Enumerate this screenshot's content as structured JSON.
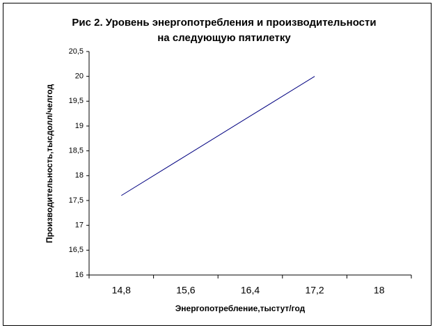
{
  "chart_data": {
    "type": "line",
    "title": [
      "Рис 2. Уровень энергопотребления и производительности",
      "на следующую пятилетку"
    ],
    "x_label": "Энергопотребление,тыстут/год",
    "y_label": "Производительность,тысдолл/челгод",
    "categories": [
      "14,8",
      "15,6",
      "16,4",
      "17,2",
      "18"
    ],
    "series": [
      {
        "name": null,
        "color": "#000080",
        "values": [
          17.6,
          18.4,
          19.2,
          20,
          null
        ]
      }
    ],
    "ylim": [
      16,
      20.5
    ],
    "yticks": [
      16,
      {
        "value": 16.5,
        "label": "16,5"
      },
      17,
      {
        "value": 17.5,
        "label": "17,5"
      },
      18,
      {
        "value": 18.5,
        "label": "18,5"
      },
      19,
      {
        "value": 19.5,
        "label": "19,5"
      },
      20,
      {
        "value": 20.5,
        "label": "20,5"
      }
    ],
    "grid": false
  }
}
